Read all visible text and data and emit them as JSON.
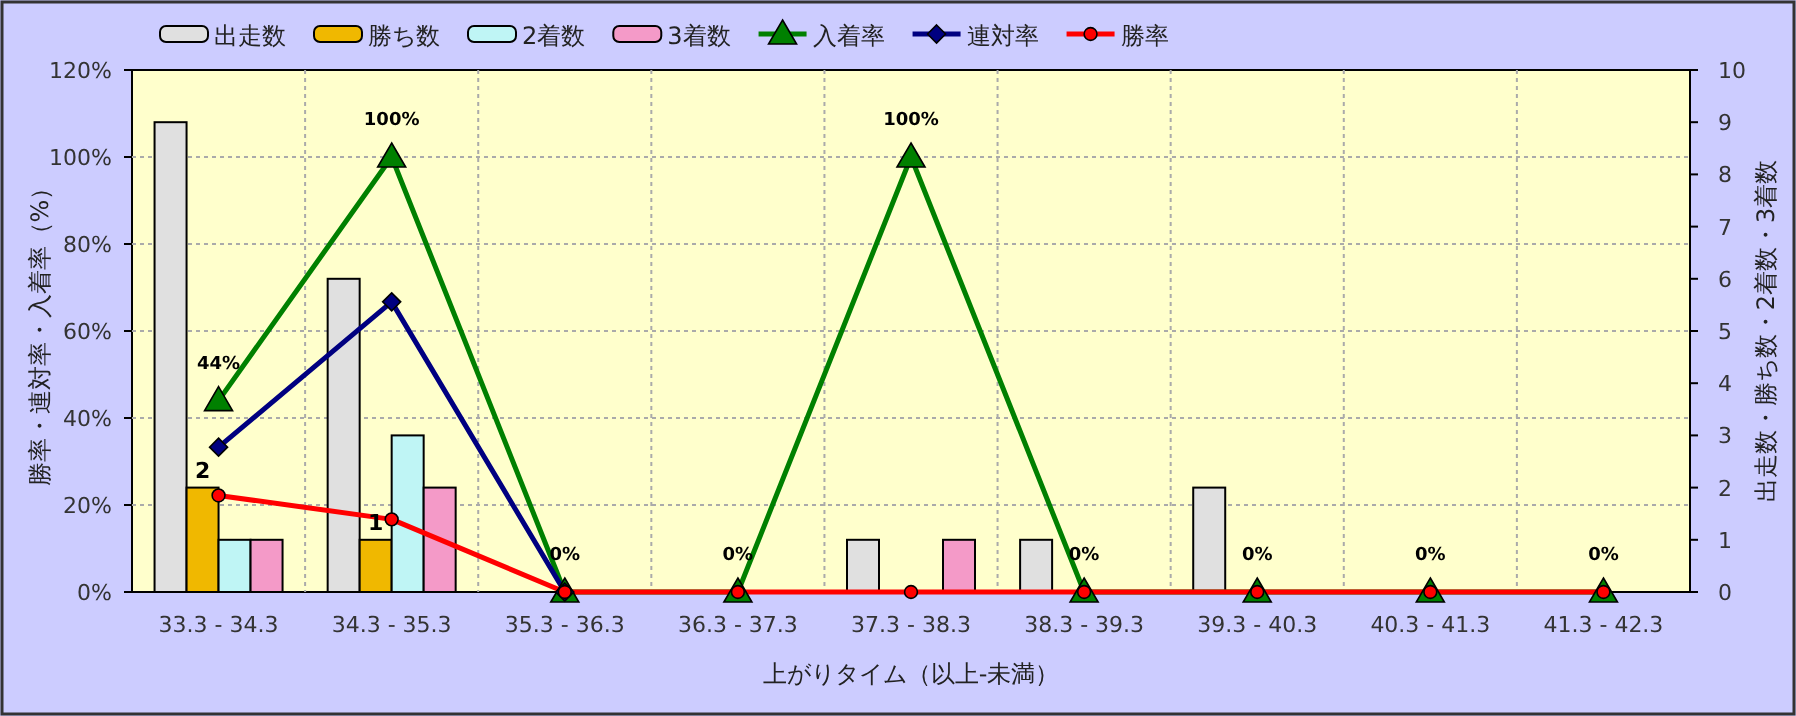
{
  "chart_data": {
    "type": "bar",
    "xlabel": "上がりタイム（以上-未満）",
    "ylabel": "勝率・連対率・入着率（%）",
    "y2label": "出走数・勝ち数・2着数・3着数",
    "categories": [
      "33.3 - 34.3",
      "34.3 - 35.3",
      "35.3 - 36.3",
      "36.3 - 37.3",
      "37.3 - 38.3",
      "38.3 - 39.3",
      "39.3 - 40.3",
      "40.3 - 41.3",
      "41.3 - 42.3"
    ],
    "series": [
      {
        "name": "出走数",
        "axis": "y2",
        "color": "#e0e0e0",
        "values": [
          9,
          6,
          0,
          0,
          1,
          1,
          2,
          0,
          0
        ]
      },
      {
        "name": "勝ち数",
        "axis": "y2",
        "color": "#f0b800",
        "values": [
          2,
          1,
          0,
          0,
          0,
          0,
          0,
          0,
          0
        ],
        "value_labels": [
          "2",
          "1",
          null,
          null,
          null,
          null,
          null,
          null,
          null
        ]
      },
      {
        "name": "2着数",
        "axis": "y2",
        "color": "#bff5f5",
        "values": [
          1,
          3,
          0,
          0,
          0,
          0,
          0,
          0,
          0
        ]
      },
      {
        "name": "3着数",
        "axis": "y2",
        "color": "#f49ac8",
        "values": [
          1,
          2,
          0,
          0,
          1,
          0,
          0,
          0,
          0
        ]
      },
      {
        "name": "入着率",
        "type": "line",
        "axis": "y",
        "color": "#008000",
        "marker": "triangle",
        "values": [
          44,
          100,
          0,
          0,
          100,
          0,
          0,
          0,
          0
        ],
        "value_labels": [
          "44%",
          "100%",
          "0%",
          "0%",
          "100%",
          "0%",
          "0%",
          "0%",
          "0%"
        ]
      },
      {
        "name": "連対率",
        "type": "line",
        "axis": "y",
        "color": "#000080",
        "marker": "diamond",
        "values": [
          33.3,
          66.7,
          0,
          null,
          null,
          null,
          null,
          null,
          null
        ]
      },
      {
        "name": "勝率",
        "type": "line",
        "axis": "y",
        "color": "#ff0000",
        "marker": "circle",
        "values": [
          22.2,
          16.7,
          0,
          0,
          0,
          0,
          0,
          0,
          0
        ]
      }
    ],
    "ylim": [
      0,
      120
    ],
    "yticks": [
      {
        "value": 0,
        "label": "0%"
      },
      {
        "value": 20,
        "label": "20%"
      },
      {
        "value": 40,
        "label": "40%"
      },
      {
        "value": 60,
        "label": "60%"
      },
      {
        "value": 80,
        "label": "80%"
      },
      {
        "value": 100,
        "label": "100%"
      },
      {
        "value": 120,
        "label": "120%"
      }
    ],
    "y2lim": [
      0,
      10
    ],
    "y2ticks": [
      0,
      1,
      2,
      3,
      4,
      5,
      6,
      7,
      8,
      9,
      10
    ],
    "grid": true,
    "legend": "top"
  }
}
